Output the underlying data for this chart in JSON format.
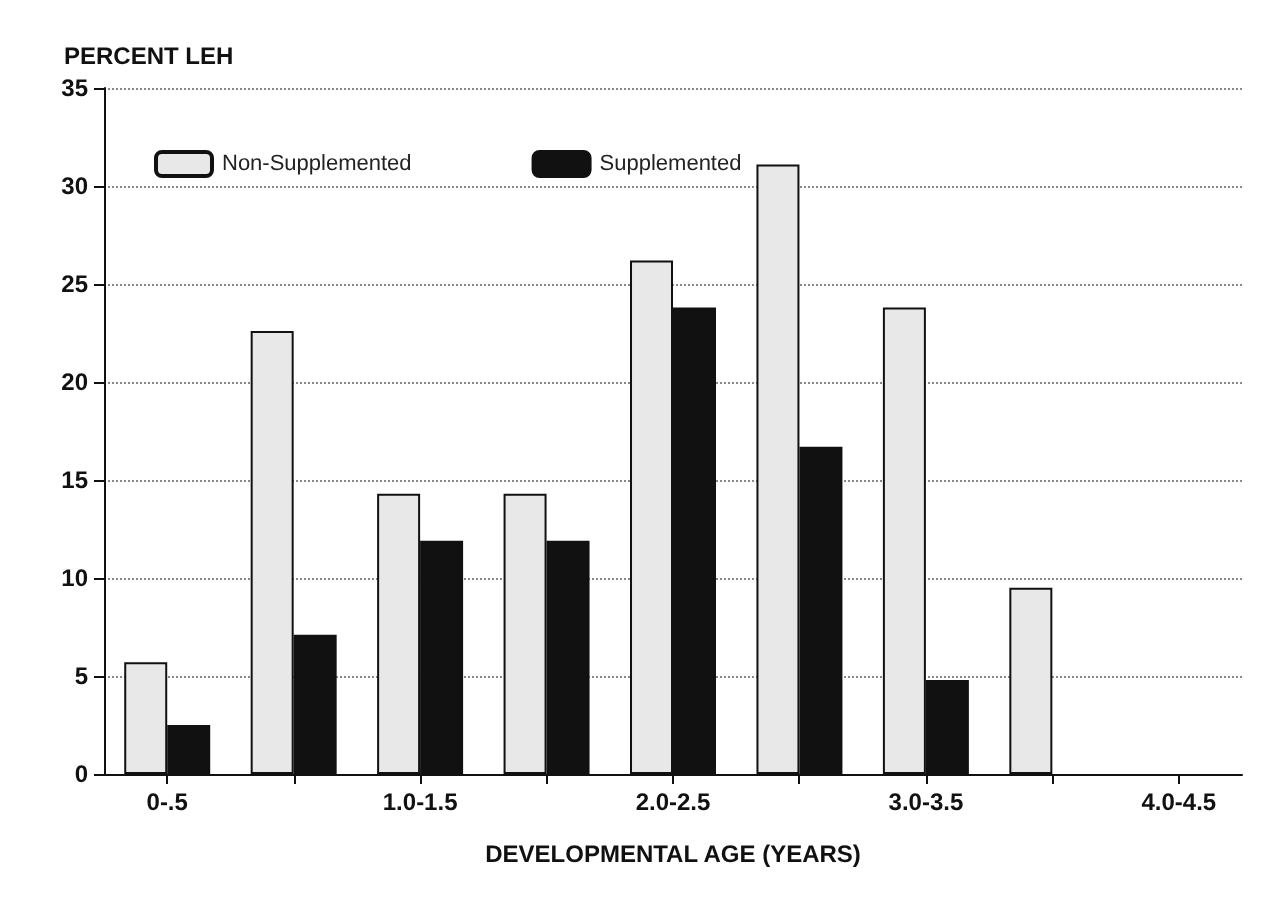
{
  "chart_data": {
    "type": "bar",
    "ylabel": "PERCENT LEH",
    "xlabel": "DEVELOPMENTAL AGE (YEARS)",
    "categories": [
      "0-.5",
      null,
      "1.0-1.5",
      null,
      "2.0-2.5",
      null,
      "3.0-3.5",
      null,
      "4.0-4.5"
    ],
    "series": [
      {
        "name": "Non-Supplemented",
        "color": "#e8e8e8",
        "values": [
          5.7,
          22.6,
          14.3,
          14.3,
          26.2,
          31.1,
          23.8,
          9.5,
          null
        ]
      },
      {
        "name": "Supplemented",
        "color": "#111111",
        "values": [
          2.5,
          7.1,
          11.9,
          11.9,
          23.8,
          16.7,
          4.8,
          null,
          null
        ]
      }
    ],
    "ylim": [
      0,
      35
    ],
    "yticks": [
      0,
      5,
      10,
      15,
      20,
      25,
      30,
      35
    ],
    "grid": "y",
    "legend": "top left"
  }
}
